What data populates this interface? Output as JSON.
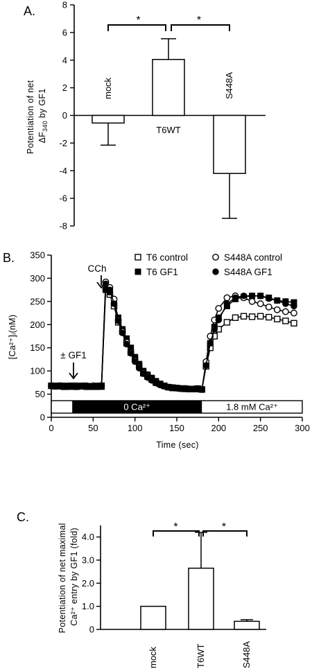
{
  "chart_data": [
    {
      "type": "bar",
      "panel_label": "A.",
      "categories": [
        "mock",
        "T6WT",
        "S448A"
      ],
      "values": [
        -0.55,
        4.05,
        -4.2
      ],
      "errors": [
        1.6,
        1.5,
        3.25
      ],
      "ylabel_line1": "Potentiation of net",
      "ylabel_line2": "ΔF",
      "ylabel_sub": "340",
      "ylabel_line2_suffix": " by GF1",
      "ylim": [
        -8,
        8
      ],
      "yticks": [
        "-8",
        "-6",
        "-4",
        "-2",
        "0",
        "2",
        "4",
        "6",
        "8"
      ],
      "significance": [
        "*",
        "*"
      ]
    },
    {
      "type": "line",
      "panel_label": "B.",
      "ylabel": "[Ca²⁺]ᵢ(nM)",
      "xlabel": "Time (sec)",
      "xlim": [
        0,
        300
      ],
      "ylim": [
        0,
        350
      ],
      "xticks": [
        "0",
        "50",
        "100",
        "150",
        "200",
        "250",
        "300"
      ],
      "yticks": [
        "0",
        "50",
        "100",
        "150",
        "200",
        "250",
        "300",
        "350"
      ],
      "annotations": {
        "cch": "CCh",
        "gf1": "± GF1"
      },
      "bands": {
        "zero_ca": "0 Ca²⁺",
        "high_ca": "1.8 mM Ca²⁺",
        "zero_range": [
          25,
          180
        ]
      },
      "series": [
        {
          "name": "T6 control",
          "marker": "open-square",
          "x": [
            0,
            5,
            10,
            15,
            20,
            25,
            30,
            35,
            40,
            45,
            50,
            55,
            60,
            65,
            70,
            75,
            80,
            85,
            90,
            95,
            100,
            105,
            110,
            115,
            120,
            125,
            130,
            135,
            140,
            145,
            150,
            155,
            160,
            165,
            170,
            175,
            180,
            185,
            190,
            195,
            200,
            210,
            220,
            230,
            240,
            250,
            260,
            270,
            280,
            290
          ],
          "y": [
            68,
            67,
            68,
            66,
            67,
            68,
            66,
            67,
            68,
            66,
            67,
            66,
            68,
            280,
            265,
            240,
            205,
            185,
            160,
            140,
            125,
            110,
            95,
            88,
            82,
            75,
            72,
            68,
            65,
            64,
            63,
            62,
            62,
            61,
            61,
            62,
            60,
            110,
            150,
            175,
            190,
            205,
            215,
            218,
            217,
            218,
            216,
            212,
            208,
            203
          ]
        },
        {
          "name": "T6 GF1",
          "marker": "filled-square",
          "x": [
            0,
            5,
            10,
            15,
            20,
            25,
            30,
            35,
            40,
            45,
            50,
            55,
            60,
            65,
            70,
            75,
            80,
            85,
            90,
            95,
            100,
            105,
            110,
            115,
            120,
            125,
            130,
            135,
            140,
            145,
            150,
            155,
            160,
            165,
            170,
            175,
            180,
            185,
            190,
            195,
            200,
            210,
            220,
            230,
            240,
            250,
            260,
            270,
            280,
            290
          ],
          "y": [
            68,
            67,
            67,
            68,
            67,
            66,
            67,
            68,
            67,
            66,
            67,
            68,
            66,
            275,
            270,
            250,
            215,
            190,
            170,
            150,
            130,
            115,
            100,
            92,
            85,
            78,
            72,
            68,
            65,
            63,
            63,
            62,
            61,
            61,
            61,
            61,
            60,
            115,
            160,
            195,
            215,
            240,
            255,
            260,
            262,
            262,
            258,
            252,
            250,
            248
          ]
        },
        {
          "name": "S448A control",
          "marker": "open-circle",
          "x": [
            0,
            5,
            10,
            15,
            20,
            25,
            30,
            35,
            40,
            45,
            50,
            55,
            60,
            65,
            70,
            75,
            80,
            85,
            90,
            95,
            100,
            105,
            110,
            115,
            120,
            125,
            130,
            135,
            140,
            145,
            150,
            155,
            160,
            165,
            170,
            175,
            180,
            185,
            190,
            195,
            200,
            210,
            220,
            230,
            240,
            250,
            260,
            270,
            280,
            290
          ],
          "y": [
            68,
            67,
            68,
            67,
            66,
            67,
            68,
            67,
            66,
            67,
            68,
            67,
            68,
            292,
            280,
            255,
            210,
            185,
            162,
            140,
            122,
            108,
            96,
            88,
            80,
            74,
            70,
            67,
            65,
            64,
            63,
            62,
            62,
            61,
            61,
            61,
            60,
            120,
            175,
            210,
            235,
            258,
            262,
            258,
            250,
            245,
            238,
            232,
            228,
            225
          ]
        },
        {
          "name": "S448A GF1",
          "marker": "filled-circle",
          "x": [
            0,
            5,
            10,
            15,
            20,
            25,
            30,
            35,
            40,
            45,
            50,
            55,
            60,
            65,
            70,
            75,
            80,
            85,
            90,
            95,
            100,
            105,
            110,
            115,
            120,
            125,
            130,
            135,
            140,
            145,
            150,
            155,
            160,
            165,
            170,
            175,
            180,
            185,
            190,
            195,
            200,
            210,
            220,
            230,
            240,
            250,
            260,
            270,
            280,
            290
          ],
          "y": [
            67,
            68,
            67,
            66,
            68,
            67,
            66,
            67,
            68,
            67,
            66,
            67,
            68,
            288,
            275,
            245,
            208,
            182,
            158,
            138,
            120,
            106,
            94,
            86,
            80,
            75,
            70,
            67,
            65,
            64,
            63,
            62,
            62,
            61,
            61,
            61,
            60,
            112,
            160,
            190,
            210,
            245,
            258,
            262,
            262,
            262,
            256,
            252,
            245,
            240
          ]
        }
      ]
    },
    {
      "type": "bar",
      "panel_label": "C.",
      "categories": [
        "mock",
        "T6WT",
        "S448A"
      ],
      "values": [
        1.0,
        2.65,
        0.35
      ],
      "errors": [
        0.0,
        1.55,
        0.07
      ],
      "ylabel_line1": "Potentiation of net maximal",
      "ylabel_line2": "Ca²⁺ entry by GF1 (fold)",
      "ylim": [
        0,
        4.5
      ],
      "yticks": [
        "0",
        "1.0",
        "2.0",
        "3.0",
        "4.0"
      ],
      "significance": [
        "*",
        "*"
      ]
    }
  ]
}
